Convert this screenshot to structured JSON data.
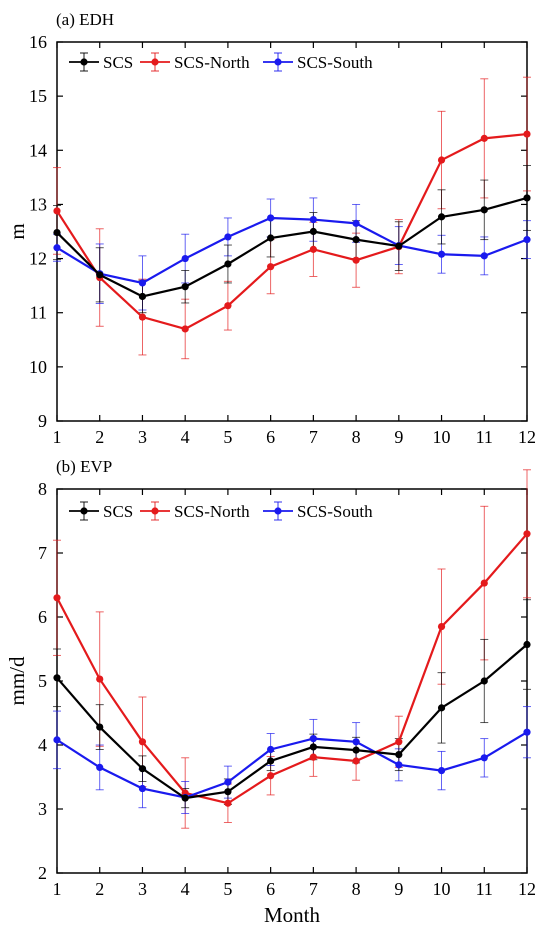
{
  "colors": {
    "SCS": "#000000",
    "SCS-North": "#e41a1c",
    "SCS-South": "#1a1aee"
  },
  "chart_data": [
    {
      "type": "line",
      "panel_label": "(a)  EDH",
      "xlabel": "",
      "ylabel": "m",
      "x": [
        1,
        2,
        3,
        4,
        5,
        6,
        7,
        8,
        9,
        10,
        11,
        12
      ],
      "xlim": [
        1,
        12
      ],
      "ylim": [
        9,
        16
      ],
      "yticks": [
        9,
        10,
        11,
        12,
        13,
        14,
        15,
        16
      ],
      "legend_position": "top-left",
      "grid": false,
      "series": [
        {
          "name": "SCS",
          "values": [
            12.48,
            11.7,
            11.3,
            11.48,
            11.9,
            12.38,
            12.5,
            12.35,
            12.23,
            12.77,
            12.9,
            13.12
          ],
          "errors": [
            0.5,
            0.5,
            0.3,
            0.3,
            0.35,
            0.35,
            0.35,
            0.35,
            0.45,
            0.5,
            0.55,
            0.6
          ]
        },
        {
          "name": "SCS-North",
          "values": [
            12.88,
            11.65,
            10.92,
            10.7,
            11.13,
            11.85,
            12.17,
            11.97,
            12.22,
            13.82,
            14.22,
            14.3
          ],
          "errors": [
            0.8,
            0.9,
            0.7,
            0.55,
            0.45,
            0.5,
            0.5,
            0.5,
            0.5,
            0.9,
            1.1,
            1.05
          ]
        },
        {
          "name": "SCS-South",
          "values": [
            12.2,
            11.72,
            11.55,
            12.0,
            12.4,
            12.75,
            12.72,
            12.65,
            12.24,
            12.08,
            12.05,
            12.35
          ],
          "errors": [
            0.25,
            0.55,
            0.5,
            0.45,
            0.35,
            0.35,
            0.4,
            0.35,
            0.35,
            0.35,
            0.35,
            0.35
          ]
        }
      ]
    },
    {
      "type": "line",
      "panel_label": "(b) EVP",
      "xlabel": "Month",
      "ylabel": "mm/d",
      "x": [
        1,
        2,
        3,
        4,
        5,
        6,
        7,
        8,
        9,
        10,
        11,
        12
      ],
      "xlim": [
        1,
        12
      ],
      "ylim": [
        2,
        8
      ],
      "yticks": [
        2,
        3,
        4,
        5,
        6,
        7,
        8
      ],
      "legend_position": "top-left",
      "grid": false,
      "series": [
        {
          "name": "SCS",
          "values": [
            5.05,
            4.28,
            3.63,
            3.17,
            3.27,
            3.75,
            3.97,
            3.92,
            3.85,
            4.58,
            5.0,
            5.57
          ],
          "errors": [
            0.45,
            0.35,
            0.2,
            0.15,
            0.2,
            0.15,
            0.2,
            0.2,
            0.25,
            0.55,
            0.65,
            0.7
          ]
        },
        {
          "name": "SCS-North",
          "values": [
            6.3,
            5.03,
            4.05,
            3.25,
            3.09,
            3.52,
            3.81,
            3.75,
            4.05,
            5.85,
            6.53,
            7.3
          ],
          "errors": [
            0.9,
            1.05,
            0.7,
            0.55,
            0.3,
            0.3,
            0.3,
            0.3,
            0.4,
            0.9,
            1.2,
            1.0
          ]
        },
        {
          "name": "SCS-South",
          "values": [
            4.08,
            3.65,
            3.32,
            3.18,
            3.42,
            3.93,
            4.1,
            4.05,
            3.69,
            3.6,
            3.8,
            4.2
          ],
          "errors": [
            0.45,
            0.35,
            0.3,
            0.25,
            0.25,
            0.25,
            0.3,
            0.3,
            0.25,
            0.3,
            0.3,
            0.4
          ]
        }
      ]
    }
  ]
}
